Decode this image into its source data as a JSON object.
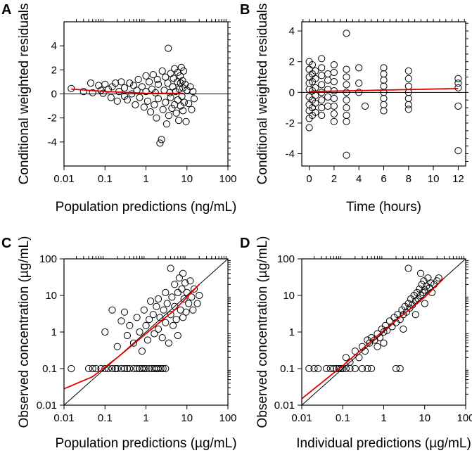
{
  "chart_data": [
    {
      "panel": "A",
      "type": "scatter",
      "xscale": "log",
      "xlabel": "Population predictions (ng/mL)",
      "ylabel": "Conditional weighted residuals",
      "xlim": [
        0.01,
        100
      ],
      "ylim": [
        -6,
        6
      ],
      "xticks": [
        0.01,
        0.1,
        1,
        10,
        100
      ],
      "xtick_labels": [
        "0.01",
        "0.1",
        "1",
        "10",
        "100"
      ],
      "yticks": [
        -4,
        -2,
        0,
        2,
        4
      ],
      "ytick_labels": [
        "-4",
        "-2",
        "0",
        "2",
        "4"
      ],
      "reference": {
        "kind": "hline",
        "y": 0
      },
      "smooth": [
        [
          0.015,
          0.4
        ],
        [
          0.1,
          0.2
        ],
        [
          1,
          0.05
        ],
        [
          8,
          0.05
        ]
      ],
      "points": [
        [
          0.015,
          0.45
        ],
        [
          0.03,
          0.2
        ],
        [
          0.045,
          0.9
        ],
        [
          0.05,
          0.1
        ],
        [
          0.07,
          0.7
        ],
        [
          0.08,
          0.3
        ],
        [
          0.09,
          0.05
        ],
        [
          0.1,
          0.8
        ],
        [
          0.12,
          0.4
        ],
        [
          0.14,
          -0.3
        ],
        [
          0.15,
          0.6
        ],
        [
          0.18,
          0.9
        ],
        [
          0.2,
          -0.6
        ],
        [
          0.22,
          0.2
        ],
        [
          0.25,
          1.0
        ],
        [
          0.3,
          0.5
        ],
        [
          0.3,
          -0.2
        ],
        [
          0.35,
          -0.5
        ],
        [
          0.4,
          0.9
        ],
        [
          0.45,
          0.0
        ],
        [
          0.5,
          0.7
        ],
        [
          0.55,
          -0.9
        ],
        [
          0.6,
          0.3
        ],
        [
          0.65,
          1.2
        ],
        [
          0.7,
          -0.3
        ],
        [
          0.8,
          0.6
        ],
        [
          0.9,
          -1.1
        ],
        [
          1,
          1.5
        ],
        [
          1,
          0.2
        ],
        [
          1.1,
          -0.6
        ],
        [
          1.2,
          1.0
        ],
        [
          1.3,
          -1.5
        ],
        [
          1.4,
          0.4
        ],
        [
          1.5,
          1.6
        ],
        [
          1.6,
          -0.9
        ],
        [
          1.7,
          0.1
        ],
        [
          1.8,
          -2.0
        ],
        [
          1.9,
          1.2
        ],
        [
          2,
          -0.4
        ],
        [
          2,
          0.8
        ],
        [
          2.2,
          -4.1
        ],
        [
          2.4,
          -3.8
        ],
        [
          2.5,
          1.9
        ],
        [
          2.6,
          -1.3
        ],
        [
          2.8,
          0.3
        ],
        [
          3,
          1.4
        ],
        [
          3,
          -0.7
        ],
        [
          3.2,
          -2.5
        ],
        [
          3.4,
          0.9
        ],
        [
          3.5,
          3.8
        ],
        [
          3.6,
          -1.8
        ],
        [
          3.8,
          0.1
        ],
        [
          4,
          1.7
        ],
        [
          4,
          -0.3
        ],
        [
          4.3,
          -1.2
        ],
        [
          4.5,
          0.6
        ],
        [
          4.7,
          1.3
        ],
        [
          5,
          -0.9
        ],
        [
          5,
          2.1
        ],
        [
          5.3,
          0.2
        ],
        [
          5.5,
          -1.6
        ],
        [
          5.8,
          1.0
        ],
        [
          6,
          -0.5
        ],
        [
          6,
          1.8
        ],
        [
          6.3,
          -2.2
        ],
        [
          6.5,
          0.4
        ],
        [
          6.8,
          1.5
        ],
        [
          7,
          -1.0
        ],
        [
          7,
          0.9
        ],
        [
          7.3,
          2.2
        ],
        [
          7.5,
          -0.2
        ],
        [
          7.8,
          1.1
        ],
        [
          8,
          -1.4
        ],
        [
          8,
          0.5
        ],
        [
          8.3,
          1.9
        ],
        [
          8.6,
          -0.7
        ],
        [
          9,
          0.8
        ],
        [
          9.5,
          -2.3
        ],
        [
          10,
          0.3
        ],
        [
          11,
          -0.8
        ],
        [
          12,
          0.6
        ],
        [
          13,
          -1.3
        ],
        [
          14,
          0.2
        ],
        [
          15,
          -0.4
        ]
      ]
    },
    {
      "panel": "B",
      "type": "scatter",
      "xlabel": "Time (hours)",
      "ylabel": "Conditional weighted residuals",
      "xlim": [
        -0.6,
        12.6
      ],
      "ylim": [
        -4.8,
        4.6
      ],
      "xticks": [
        0,
        2,
        4,
        6,
        8,
        10,
        12
      ],
      "xtick_labels": [
        "0",
        "2",
        "4",
        "6",
        "8",
        "10",
        "12"
      ],
      "yticks": [
        -4,
        -2,
        0,
        2,
        4
      ],
      "ytick_labels": [
        "-4",
        "-2",
        "0",
        "2",
        "4"
      ],
      "reference": {
        "kind": "hline",
        "y": 0
      },
      "smooth": [
        [
          0,
          0.05
        ],
        [
          3,
          0.1
        ],
        [
          6,
          0.15
        ],
        [
          9,
          0.2
        ],
        [
          12,
          0.25
        ]
      ],
      "points": [
        [
          0,
          2.0
        ],
        [
          0,
          1.5
        ],
        [
          0,
          1.0
        ],
        [
          0,
          0.6
        ],
        [
          0,
          0.2
        ],
        [
          0,
          -0.3
        ],
        [
          0,
          -0.8
        ],
        [
          0,
          -1.2
        ],
        [
          0,
          -1.7
        ],
        [
          0,
          -2.3
        ],
        [
          0.25,
          1.8
        ],
        [
          0.25,
          1.2
        ],
        [
          0.25,
          0.7
        ],
        [
          0.25,
          0.1
        ],
        [
          0.25,
          -0.5
        ],
        [
          0.25,
          -1.0
        ],
        [
          0.25,
          -1.5
        ],
        [
          0.5,
          1.4
        ],
        [
          0.5,
          0.9
        ],
        [
          0.5,
          0.3
        ],
        [
          0.5,
          -0.2
        ],
        [
          0.5,
          -0.7
        ],
        [
          0.5,
          -1.3
        ],
        [
          1,
          2.2
        ],
        [
          1,
          1.6
        ],
        [
          1,
          1.1
        ],
        [
          1,
          0.5
        ],
        [
          1,
          0.0
        ],
        [
          1,
          -0.5
        ],
        [
          1,
          -1.0
        ],
        [
          1,
          -1.5
        ],
        [
          1.5,
          1.2
        ],
        [
          1.5,
          0.8
        ],
        [
          1.5,
          0.2
        ],
        [
          1.5,
          -0.3
        ],
        [
          1.5,
          -0.9
        ],
        [
          2,
          1.8
        ],
        [
          2,
          1.3
        ],
        [
          2,
          0.7
        ],
        [
          2,
          0.1
        ],
        [
          2,
          -0.4
        ],
        [
          2,
          -0.9
        ],
        [
          2,
          -1.4
        ],
        [
          2,
          -1.9
        ],
        [
          3,
          3.85
        ],
        [
          3,
          1.5
        ],
        [
          3,
          1.0
        ],
        [
          3,
          0.5
        ],
        [
          3,
          0.0
        ],
        [
          3,
          -0.5
        ],
        [
          3,
          -1.0
        ],
        [
          3,
          -1.5
        ],
        [
          3,
          -1.9
        ],
        [
          3,
          -4.1
        ],
        [
          4,
          1.6
        ],
        [
          4,
          0.6
        ],
        [
          4,
          0.0
        ],
        [
          4.5,
          -0.9
        ],
        [
          6,
          1.6
        ],
        [
          6,
          1.2
        ],
        [
          6,
          0.8
        ],
        [
          6,
          0.4
        ],
        [
          6,
          0.0
        ],
        [
          6,
          -0.4
        ],
        [
          6,
          -0.8
        ],
        [
          6,
          -1.2
        ],
        [
          8,
          1.4
        ],
        [
          8,
          0.9
        ],
        [
          8,
          0.4
        ],
        [
          8,
          0.0
        ],
        [
          8,
          -0.4
        ],
        [
          8,
          -0.8
        ],
        [
          8,
          -1.1
        ],
        [
          12,
          0.9
        ],
        [
          12,
          0.6
        ],
        [
          12,
          0.3
        ],
        [
          12,
          -0.9
        ],
        [
          12,
          -3.8
        ]
      ]
    },
    {
      "panel": "C",
      "type": "scatter",
      "xscale": "log",
      "yscale": "log",
      "xlabel": "Population predictions (µg/mL)",
      "ylabel": "Observed concentration (µg/mL)",
      "xlim": [
        0.01,
        100
      ],
      "ylim": [
        0.01,
        100
      ],
      "xticks": [
        0.01,
        0.1,
        1,
        10,
        100
      ],
      "xtick_labels": [
        "0.01",
        "0.1",
        "1",
        "10",
        "100"
      ],
      "yticks": [
        0.01,
        0.1,
        1,
        10,
        100
      ],
      "ytick_labels": [
        "0.01",
        "0.1",
        "1",
        "10",
        "100"
      ],
      "reference": {
        "kind": "identity"
      },
      "smooth": [
        [
          0.01,
          0.028
        ],
        [
          0.05,
          0.06
        ],
        [
          0.2,
          0.2
        ],
        [
          1,
          0.9
        ],
        [
          5,
          4
        ],
        [
          20,
          20
        ]
      ],
      "points": [
        [
          0.015,
          0.1
        ],
        [
          0.04,
          0.1
        ],
        [
          0.05,
          0.1
        ],
        [
          0.06,
          0.1
        ],
        [
          0.08,
          0.1
        ],
        [
          0.1,
          0.1
        ],
        [
          0.12,
          0.1
        ],
        [
          0.15,
          0.1
        ],
        [
          0.18,
          0.1
        ],
        [
          0.2,
          0.1
        ],
        [
          0.25,
          0.1
        ],
        [
          0.3,
          0.1
        ],
        [
          0.35,
          0.1
        ],
        [
          0.4,
          0.1
        ],
        [
          0.5,
          0.1
        ],
        [
          0.6,
          0.1
        ],
        [
          0.7,
          0.1
        ],
        [
          0.8,
          0.1
        ],
        [
          0.9,
          0.1
        ],
        [
          1,
          0.1
        ],
        [
          1.2,
          0.1
        ],
        [
          1.4,
          0.1
        ],
        [
          1.6,
          0.1
        ],
        [
          1.8,
          0.1
        ],
        [
          2,
          0.1
        ],
        [
          2.3,
          0.1
        ],
        [
          2.6,
          0.1
        ],
        [
          3,
          0.1
        ],
        [
          0.1,
          1.0
        ],
        [
          0.15,
          4
        ],
        [
          0.2,
          0.4
        ],
        [
          0.25,
          2
        ],
        [
          0.3,
          3.5
        ],
        [
          0.35,
          0.8
        ],
        [
          0.4,
          1.5
        ],
        [
          0.5,
          0.5
        ],
        [
          0.6,
          2.5
        ],
        [
          0.7,
          1
        ],
        [
          0.8,
          0.3
        ],
        [
          0.9,
          4
        ],
        [
          1,
          1.5
        ],
        [
          1.1,
          0.6
        ],
        [
          1.2,
          2.2
        ],
        [
          1.3,
          7
        ],
        [
          1.5,
          3
        ],
        [
          1.6,
          0.9
        ],
        [
          1.8,
          5
        ],
        [
          2,
          1.2
        ],
        [
          2,
          8
        ],
        [
          2.2,
          2.5
        ],
        [
          2.5,
          0.7
        ],
        [
          2.7,
          4
        ],
        [
          3,
          12
        ],
        [
          3,
          1.8
        ],
        [
          3.3,
          6
        ],
        [
          3.6,
          0.5
        ],
        [
          4,
          3
        ],
        [
          4,
          55
        ],
        [
          4.3,
          9
        ],
        [
          4.6,
          1.5
        ],
        [
          5,
          20
        ],
        [
          5,
          5
        ],
        [
          5.5,
          2.2
        ],
        [
          6,
          12
        ],
        [
          6,
          0.8
        ],
        [
          6.5,
          30
        ],
        [
          7,
          4
        ],
        [
          7.5,
          15
        ],
        [
          8,
          2.5
        ],
        [
          8,
          40
        ],
        [
          8.5,
          8
        ],
        [
          9,
          22
        ],
        [
          9.5,
          3.5
        ],
        [
          10,
          12
        ],
        [
          11,
          6
        ],
        [
          12,
          25
        ],
        [
          13,
          9
        ],
        [
          14,
          4
        ],
        [
          15,
          15
        ],
        [
          18,
          6
        ],
        [
          20,
          10
        ]
      ]
    },
    {
      "panel": "D",
      "type": "scatter",
      "xscale": "log",
      "yscale": "log",
      "xlabel": "Individual predictions (µg/mL)",
      "ylabel": "Observed concentration (µg/mL)",
      "xlim": [
        0.01,
        100
      ],
      "ylim": [
        0.01,
        100
      ],
      "xticks": [
        0.01,
        0.1,
        1,
        10,
        100
      ],
      "xtick_labels": [
        "0.01",
        "0.1",
        "1",
        "10",
        "100"
      ],
      "yticks": [
        0.01,
        0.1,
        1,
        10,
        100
      ],
      "ytick_labels": [
        "0.01",
        "0.1",
        "1",
        "10",
        "100"
      ],
      "reference": {
        "kind": "identity"
      },
      "smooth": [
        [
          0.01,
          0.015
        ],
        [
          0.1,
          0.12
        ],
        [
          1,
          1.1
        ],
        [
          10,
          9
        ],
        [
          30,
          30
        ]
      ],
      "points": [
        [
          0.015,
          0.1
        ],
        [
          0.02,
          0.1
        ],
        [
          0.025,
          0.1
        ],
        [
          0.04,
          0.1
        ],
        [
          0.05,
          0.1
        ],
        [
          0.06,
          0.1
        ],
        [
          0.07,
          0.1
        ],
        [
          0.08,
          0.1
        ],
        [
          0.09,
          0.1
        ],
        [
          0.1,
          0.1
        ],
        [
          0.12,
          0.1
        ],
        [
          0.15,
          0.1
        ],
        [
          0.2,
          0.1
        ],
        [
          0.3,
          0.1
        ],
        [
          0.4,
          0.1
        ],
        [
          0.5,
          0.1
        ],
        [
          2,
          0.1
        ],
        [
          2.5,
          0.1
        ],
        [
          0.12,
          0.2
        ],
        [
          0.15,
          0.15
        ],
        [
          0.2,
          0.3
        ],
        [
          0.25,
          0.2
        ],
        [
          0.3,
          0.4
        ],
        [
          0.35,
          0.3
        ],
        [
          0.4,
          0.6
        ],
        [
          0.45,
          0.5
        ],
        [
          0.5,
          0.7
        ],
        [
          0.6,
          0.6
        ],
        [
          0.7,
          0.9
        ],
        [
          0.8,
          0.7
        ],
        [
          0.9,
          1.2
        ],
        [
          1,
          1.0
        ],
        [
          1.1,
          1.5
        ],
        [
          1.2,
          1.1
        ],
        [
          1.4,
          2
        ],
        [
          1.6,
          1.4
        ],
        [
          1.8,
          2.5
        ],
        [
          2,
          1.8
        ],
        [
          2.2,
          3
        ],
        [
          2.5,
          2.2
        ],
        [
          2.8,
          4
        ],
        [
          3,
          3
        ],
        [
          3.3,
          5
        ],
        [
          3.6,
          3.5
        ],
        [
          4,
          6
        ],
        [
          4,
          55
        ],
        [
          4.3,
          4.5
        ],
        [
          4.6,
          8
        ],
        [
          5,
          5.5
        ],
        [
          5.5,
          10
        ],
        [
          6,
          7
        ],
        [
          6.5,
          12
        ],
        [
          7,
          8
        ],
        [
          7.5,
          15
        ],
        [
          8,
          10
        ],
        [
          8.5,
          20
        ],
        [
          9,
          12
        ],
        [
          9.5,
          25
        ],
        [
          10,
          14
        ],
        [
          11,
          18
        ],
        [
          12,
          30
        ],
        [
          13,
          16
        ],
        [
          14,
          22
        ],
        [
          15,
          12
        ],
        [
          17,
          20
        ],
        [
          20,
          25
        ],
        [
          22,
          30
        ],
        [
          8,
          40
        ],
        [
          10,
          6
        ],
        [
          6,
          3
        ],
        [
          3,
          1.2
        ],
        [
          1,
          0.5
        ],
        [
          0.7,
          0.4
        ]
      ]
    }
  ]
}
